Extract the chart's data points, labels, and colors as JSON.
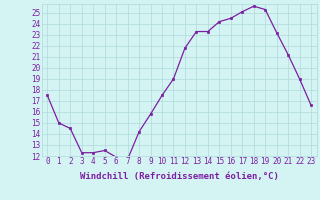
{
  "x": [
    0,
    1,
    2,
    3,
    4,
    5,
    6,
    7,
    8,
    9,
    10,
    11,
    12,
    13,
    14,
    15,
    16,
    17,
    18,
    19,
    20,
    21,
    22,
    23
  ],
  "y": [
    17.5,
    15.0,
    14.5,
    12.3,
    12.3,
    12.5,
    11.9,
    11.7,
    14.2,
    15.8,
    17.5,
    19.0,
    21.8,
    23.3,
    23.3,
    24.2,
    24.5,
    25.1,
    25.6,
    25.3,
    23.2,
    21.2,
    19.0,
    16.6
  ],
  "line_color": "#7B1FA2",
  "marker_color": "#7B1FA2",
  "bg_color": "#d4f4f4",
  "grid_color": "#b0dada",
  "xlabel": "Windchill (Refroidissement éolien,°C)",
  "ylim": [
    12,
    25.8
  ],
  "xlim": [
    -0.5,
    23.5
  ],
  "yticks": [
    12,
    13,
    14,
    15,
    16,
    17,
    18,
    19,
    20,
    21,
    22,
    23,
    24,
    25
  ],
  "xticks": [
    0,
    1,
    2,
    3,
    4,
    5,
    6,
    7,
    8,
    9,
    10,
    11,
    12,
    13,
    14,
    15,
    16,
    17,
    18,
    19,
    20,
    21,
    22,
    23
  ],
  "tick_color": "#7B1FA2",
  "label_color": "#7B1FA2",
  "label_fontsize": 6.5,
  "tick_fontsize": 5.5
}
